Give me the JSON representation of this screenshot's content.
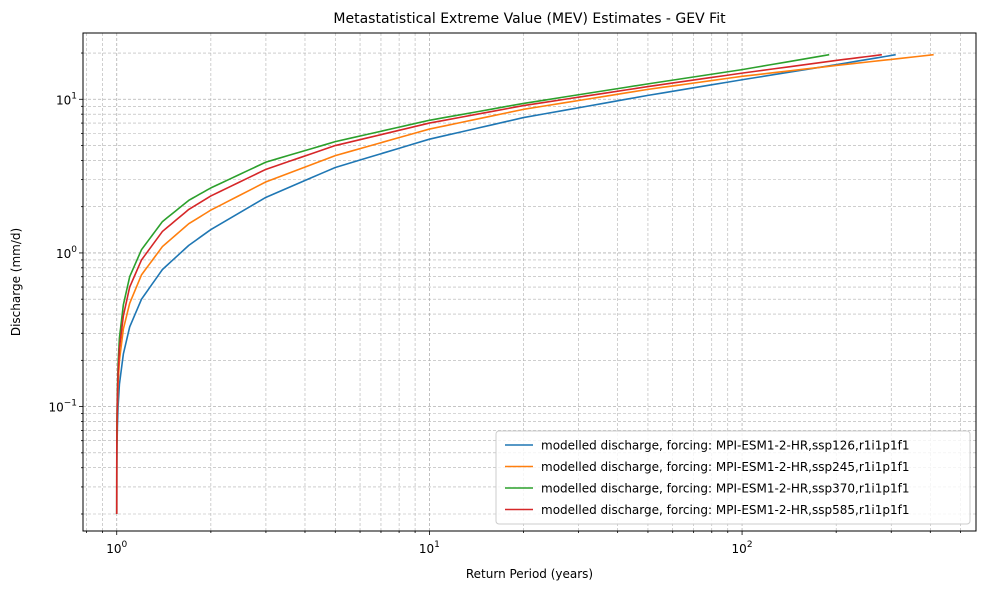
{
  "chart_data": {
    "type": "line",
    "title": "Metastatistical Extreme Value (MEV) Estimates - GEV Fit",
    "xlabel": "Return Period (years)",
    "ylabel": "Discharge (mm/d)",
    "xscale": "log",
    "yscale": "log",
    "xlim": [
      0.78,
      560
    ],
    "ylim": [
      0.0155,
      27
    ],
    "grid": true,
    "legend_position": "lower-right",
    "x_ticks": [
      {
        "value": 1,
        "base": "10",
        "exp": "0"
      },
      {
        "value": 10,
        "base": "10",
        "exp": "1"
      },
      {
        "value": 100,
        "base": "10",
        "exp": "2"
      }
    ],
    "y_ticks": [
      {
        "value": 0.1,
        "base": "10",
        "exp": "−1"
      },
      {
        "value": 1,
        "base": "10",
        "exp": "0"
      },
      {
        "value": 10,
        "base": "10",
        "exp": "1"
      }
    ],
    "series": [
      {
        "name": "modelled discharge, forcing: MPI-ESM1-2-HR,ssp126,r1i1p1f1",
        "color": "#1f77b4",
        "x": [
          1.0,
          1.0005,
          1.002,
          1.005,
          1.01,
          1.02,
          1.05,
          1.1,
          1.2,
          1.4,
          1.7,
          2,
          3,
          5,
          10,
          20,
          50,
          100,
          200,
          310
        ],
        "y": [
          0.02,
          0.04,
          0.055,
          0.075,
          0.1,
          0.14,
          0.22,
          0.33,
          0.5,
          0.78,
          1.12,
          1.42,
          2.3,
          3.6,
          5.5,
          7.6,
          10.6,
          13.4,
          16.8,
          19.5
        ]
      },
      {
        "name": "modelled discharge, forcing: MPI-ESM1-2-HR,ssp245,r1i1p1f1",
        "color": "#ff7f0e",
        "x": [
          1.0,
          1.0005,
          1.002,
          1.005,
          1.01,
          1.02,
          1.05,
          1.1,
          1.2,
          1.4,
          1.7,
          2,
          3,
          5,
          10,
          20,
          50,
          100,
          200,
          410
        ],
        "y": [
          0.02,
          0.05,
          0.07,
          0.1,
          0.14,
          0.2,
          0.32,
          0.47,
          0.72,
          1.1,
          1.55,
          1.9,
          2.9,
          4.3,
          6.4,
          8.6,
          11.6,
          14.1,
          16.6,
          19.5
        ]
      },
      {
        "name": "modelled discharge, forcing: MPI-ESM1-2-HR,ssp370,r1i1p1f1",
        "color": "#2ca02c",
        "x": [
          1.0,
          1.0005,
          1.002,
          1.005,
          1.01,
          1.02,
          1.05,
          1.1,
          1.2,
          1.4,
          1.7,
          2,
          3,
          5,
          10,
          20,
          50,
          100,
          190
        ],
        "y": [
          0.02,
          0.06,
          0.09,
          0.13,
          0.19,
          0.28,
          0.46,
          0.7,
          1.05,
          1.6,
          2.2,
          2.65,
          3.9,
          5.3,
          7.3,
          9.4,
          12.6,
          15.6,
          19.5
        ]
      },
      {
        "name": "modelled discharge, forcing: MPI-ESM1-2-HR,ssp585,r1i1p1f1",
        "color": "#d62728",
        "x": [
          1.0,
          1.0005,
          1.002,
          1.005,
          1.01,
          1.02,
          1.05,
          1.1,
          1.2,
          1.4,
          1.7,
          2,
          3,
          5,
          10,
          20,
          50,
          100,
          200,
          280
        ],
        "y": [
          0.02,
          0.055,
          0.08,
          0.115,
          0.165,
          0.24,
          0.39,
          0.6,
          0.9,
          1.38,
          1.92,
          2.35,
          3.5,
          5.0,
          7.0,
          9.1,
          12.1,
          14.8,
          17.9,
          19.5
        ]
      }
    ]
  }
}
